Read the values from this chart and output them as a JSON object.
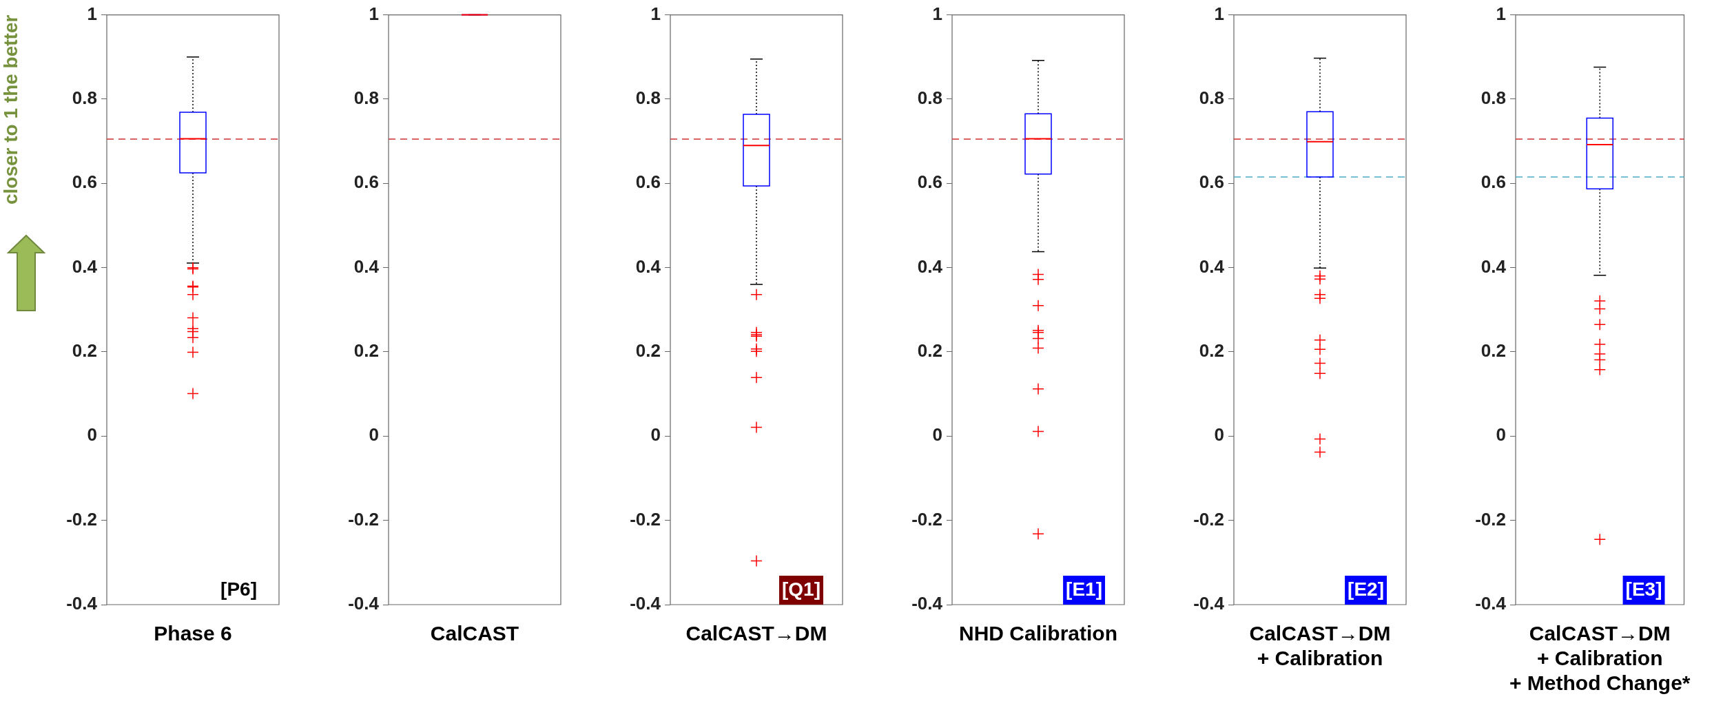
{
  "chart_data": [
    {
      "type": "box",
      "categories": [
        "Phase 6"
      ],
      "ylabel": "closer to 1 the better",
      "ylim": [
        -0.4,
        1
      ],
      "yticks": [
        -0.4,
        -0.2,
        0,
        0.2,
        0.4,
        0.6,
        0.8,
        1
      ],
      "grid": false,
      "annotations": [
        "[P6]"
      ],
      "ref_lines": [
        {
          "axis": "y",
          "value": 0.705,
          "color": "#d03030",
          "line_style": "dashed"
        }
      ],
      "series": [
        {
          "color": "#0000ff",
          "boxes": [
            {
              "low": 0.411,
              "q1": 0.625,
              "median": 0.706,
              "q3": 0.769,
              "high": 0.9,
              "outliers": [
                0.4,
                0.397,
                0.356,
                0.354,
                0.336,
                0.281,
                0.255,
                0.248,
                0.234,
                0.199,
                0.101
              ]
            }
          ]
        }
      ]
    },
    {
      "type": "box",
      "categories": [
        "CalCAST"
      ],
      "ylim": [
        -0.4,
        1
      ],
      "yticks": [
        -0.4,
        -0.2,
        0,
        0.2,
        0.4,
        0.6,
        0.8,
        1
      ],
      "grid": false,
      "ref_lines": [
        {
          "axis": "y",
          "value": 0.705,
          "color": "#d03030",
          "line_style": "dashed"
        }
      ],
      "series": [
        {
          "color": "#0000ff",
          "boxes": [
            {
              "low": 1,
              "q1": 1,
              "median": 1,
              "q3": 1,
              "high": 1
            }
          ]
        }
      ]
    },
    {
      "type": "box",
      "categories": [
        "CalCAST→DM"
      ],
      "ylim": [
        -0.4,
        1
      ],
      "yticks": [
        -0.4,
        -0.2,
        0,
        0.2,
        0.4,
        0.6,
        0.8,
        1
      ],
      "grid": false,
      "annotations": [
        "[Q1]"
      ],
      "ref_lines": [
        {
          "axis": "y",
          "value": 0.705,
          "color": "#d03030",
          "line_style": "dashed"
        }
      ],
      "series": [
        {
          "color": "#0000ff",
          "boxes": [
            {
              "low": 0.36,
              "q1": 0.594,
              "median": 0.69,
              "q3": 0.764,
              "high": 0.895,
              "outliers": [
                0.336,
                0.246,
                0.241,
                0.237,
                0.207,
                0.201,
                0.139,
                0.021,
                -0.296
              ]
            }
          ]
        }
      ]
    },
    {
      "type": "box",
      "categories": [
        "NHD Calibration"
      ],
      "ylim": [
        -0.4,
        1
      ],
      "yticks": [
        -0.4,
        -0.2,
        0,
        0.2,
        0.4,
        0.6,
        0.8,
        1
      ],
      "grid": false,
      "annotations": [
        "[E1]"
      ],
      "ref_lines": [
        {
          "axis": "y",
          "value": 0.705,
          "color": "#d03030",
          "line_style": "dashed"
        }
      ],
      "series": [
        {
          "color": "#0000ff",
          "boxes": [
            {
              "low": 0.438,
              "q1": 0.622,
              "median": 0.706,
              "q3": 0.765,
              "high": 0.892,
              "outliers": [
                0.384,
                0.372,
                0.31,
                0.251,
                0.246,
                0.232,
                0.209,
                0.112,
                0.011,
                -0.232
              ]
            }
          ]
        }
      ]
    },
    {
      "type": "box",
      "categories": [
        "CalCAST→DM\n+ Calibration"
      ],
      "ylim": [
        -0.4,
        1
      ],
      "yticks": [
        -0.4,
        -0.2,
        0,
        0.2,
        0.4,
        0.6,
        0.8,
        1
      ],
      "grid": false,
      "annotations": [
        "[E2]"
      ],
      "ref_lines": [
        {
          "axis": "y",
          "value": 0.705,
          "color": "#d03030",
          "line_style": "dashed"
        },
        {
          "axis": "y",
          "value": 0.615,
          "color": "#4bacc6",
          "line_style": "dashed"
        }
      ],
      "series": [
        {
          "color": "#0000ff",
          "boxes": [
            {
              "low": 0.399,
              "q1": 0.615,
              "median": 0.699,
              "q3": 0.77,
              "high": 0.897,
              "outliers": [
                0.38,
                0.373,
                0.336,
                0.327,
                0.228,
                0.206,
                0.173,
                0.149,
                -0.007,
                -0.038
              ]
            }
          ]
        }
      ]
    },
    {
      "type": "box",
      "categories": [
        "CalCAST→DM\n+ Calibration\n+ Method Change*"
      ],
      "ylim": [
        -0.4,
        1
      ],
      "yticks": [
        -0.4,
        -0.2,
        0,
        0.2,
        0.4,
        0.6,
        0.8,
        1
      ],
      "grid": false,
      "annotations": [
        "[E3]"
      ],
      "ref_lines": [
        {
          "axis": "y",
          "value": 0.705,
          "color": "#d03030",
          "line_style": "dashed"
        },
        {
          "axis": "y",
          "value": 0.615,
          "color": "#4bacc6",
          "line_style": "dashed"
        }
      ],
      "series": [
        {
          "color": "#0000ff",
          "boxes": [
            {
              "low": 0.382,
              "q1": 0.587,
              "median": 0.692,
              "q3": 0.755,
              "high": 0.876,
              "outliers": [
                0.321,
                0.302,
                0.265,
                0.218,
                0.195,
                0.181,
                0.158,
                -0.245
              ]
            }
          ]
        }
      ]
    }
  ]
}
